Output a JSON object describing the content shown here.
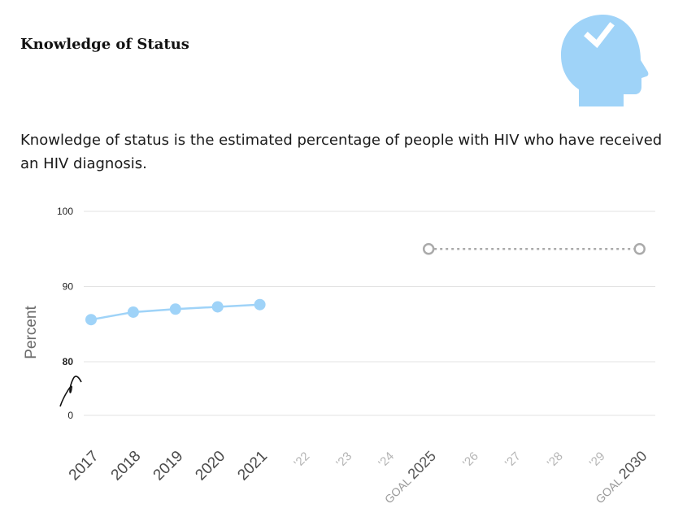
{
  "card": {
    "title": "Knowledge of Status",
    "description": "Knowledge of status is the estimated percentage of people with HIV who have received an HIV diagnosis.",
    "icon": "head-checkmark-icon",
    "icon_color": "#9fd3f8"
  },
  "chart_data": {
    "type": "line",
    "ylabel": "Percent",
    "y_ticks": [
      0,
      80,
      90,
      100
    ],
    "ylim": [
      80,
      100
    ],
    "y_axis_break": true,
    "x_labels": [
      {
        "text": "2017",
        "style": "year"
      },
      {
        "text": "2018",
        "style": "year"
      },
      {
        "text": "2019",
        "style": "year"
      },
      {
        "text": "2020",
        "style": "year"
      },
      {
        "text": "2021",
        "style": "year"
      },
      {
        "text": "'22",
        "style": "future"
      },
      {
        "text": "'23",
        "style": "future"
      },
      {
        "text": "'24",
        "style": "future"
      },
      {
        "text": "2025",
        "prefix": "GOAL",
        "style": "goal"
      },
      {
        "text": "'26",
        "style": "future"
      },
      {
        "text": "'27",
        "style": "future"
      },
      {
        "text": "'28",
        "style": "future"
      },
      {
        "text": "'29",
        "style": "future"
      },
      {
        "text": "2030",
        "prefix": "GOAL",
        "style": "goal"
      }
    ],
    "series": [
      {
        "kind": "observed",
        "color": "#9fd3f8",
        "points": [
          {
            "x": "2017",
            "y": 85.6
          },
          {
            "x": "2018",
            "y": 86.6
          },
          {
            "x": "2019",
            "y": 87.0
          },
          {
            "x": "2020",
            "y": 87.3
          },
          {
            "x": "2021",
            "y": 87.6
          }
        ]
      },
      {
        "kind": "goal",
        "color": "#aaaaaa",
        "points": [
          {
            "x": "2025",
            "y": 95
          },
          {
            "x": "2030",
            "y": 95
          }
        ]
      }
    ],
    "grid": true
  }
}
